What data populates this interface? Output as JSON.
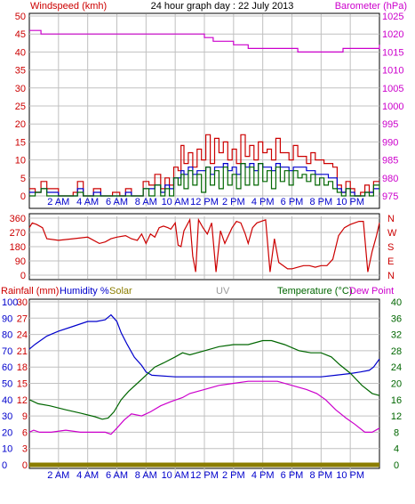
{
  "title": "24 hour graph day : 22 July 2013",
  "colors": {
    "red": "#cc0000",
    "blue": "#0000cc",
    "green": "#006600",
    "magenta": "#cc00cc",
    "olive": "#8b7d00",
    "grid": "#c0c0c0",
    "frame": "#000000",
    "uv": "#999999"
  },
  "time_ticks": [
    "2 AM",
    "4 AM",
    "6 AM",
    "8 AM",
    "10 AM",
    "12 PM",
    "2 PM",
    "4 PM",
    "6 PM",
    "8 PM",
    "10 PM"
  ],
  "chart_data": [
    {
      "type": "line",
      "panel": "wind-pressure",
      "left_axis_label": "Windspeed (kmh)",
      "right_axis_label": "Barometer (hPa)",
      "left_ticks": [
        "0",
        "5",
        "10",
        "15",
        "20",
        "25",
        "30",
        "35",
        "40",
        "45",
        "50"
      ],
      "right_ticks": [
        "975",
        "980",
        "985",
        "990",
        "995",
        "1000",
        "1005",
        "1010",
        "1015",
        "1020",
        "1025"
      ],
      "left_ylim": [
        0,
        50
      ],
      "right_ylim": [
        975,
        1025
      ],
      "x_range_hours": [
        0,
        24
      ],
      "grid": true,
      "series": [
        {
          "name": "Barometer",
          "axis": "right",
          "color": "magenta",
          "step": true,
          "x": [
            0,
            0.8,
            2.4,
            4.2,
            6.2,
            8,
            10,
            12,
            12.6,
            14,
            15,
            16,
            18,
            18.4,
            19.6,
            20.6,
            21.5,
            22.6,
            23.5,
            24
          ],
          "y": [
            1021,
            1020,
            1020,
            1020,
            1020,
            1020,
            1020,
            1019,
            1018,
            1017,
            1016,
            1016,
            1016,
            1015,
            1015,
            1015,
            1016,
            1016,
            1016,
            1017
          ]
        },
        {
          "name": "Wind gust",
          "axis": "left",
          "color": "red",
          "step": true,
          "x": [
            0,
            0.4,
            0.8,
            1.2,
            2,
            3,
            3.3,
            3.7,
            4.4,
            4.9,
            5.3,
            5.7,
            6.2,
            6.6,
            7,
            7.4,
            7.8,
            8.2,
            8.6,
            9,
            9.3,
            9.6,
            9.9,
            10.2,
            10.4,
            10.6,
            10.9,
            11.2,
            11.5,
            11.8,
            12.1,
            12.4,
            12.7,
            13,
            13.3,
            13.6,
            13.9,
            14.2,
            14.5,
            14.8,
            15.1,
            15.4,
            15.7,
            16,
            16.3,
            16.6,
            16.9,
            17.2,
            17.5,
            17.8,
            18.1,
            18.4,
            18.7,
            19,
            19.3,
            19.6,
            19.9,
            20.2,
            20.5,
            20.8,
            21.1,
            21.4,
            21.7,
            22,
            22.3,
            22.7,
            23,
            23.3,
            23.6,
            24
          ],
          "y": [
            2,
            1,
            4,
            2,
            0,
            1,
            4,
            0,
            2,
            0,
            0,
            1,
            0,
            2,
            0,
            0,
            4,
            3,
            6,
            2,
            5,
            3,
            8,
            7,
            14,
            9,
            12,
            8,
            13,
            10,
            17,
            9,
            16,
            12,
            15,
            10,
            13,
            9,
            17,
            11,
            14,
            10,
            15,
            12,
            13,
            10,
            16,
            12,
            12,
            10,
            14,
            11,
            11,
            9,
            12,
            10,
            10,
            9,
            9,
            8,
            3,
            1,
            4,
            2,
            0,
            1,
            3,
            1,
            4,
            4
          ]
        },
        {
          "name": "Wind average",
          "axis": "left",
          "color": "blue",
          "step": true,
          "x": [
            0,
            0.4,
            0.8,
            1.2,
            2,
            3,
            3.3,
            3.7,
            4.4,
            4.9,
            5.3,
            5.7,
            6.2,
            6.6,
            7,
            7.4,
            7.8,
            8.2,
            8.6,
            9,
            9.3,
            9.6,
            9.9,
            10.2,
            10.4,
            10.6,
            10.9,
            11.2,
            11.5,
            11.8,
            12.1,
            12.4,
            12.7,
            13,
            13.3,
            13.6,
            13.9,
            14.2,
            14.5,
            14.8,
            15.1,
            15.4,
            15.7,
            16,
            16.3,
            16.6,
            16.9,
            17.2,
            17.5,
            17.8,
            18.1,
            18.4,
            18.7,
            19,
            19.3,
            19.6,
            19.9,
            20.2,
            20.5,
            20.8,
            21.1,
            21.4,
            21.7,
            22,
            22.3,
            22.7,
            23,
            23.3,
            23.6,
            24
          ],
          "y": [
            1,
            1,
            2,
            1,
            0,
            0,
            2,
            0,
            1,
            0,
            0,
            0,
            0,
            1,
            0,
            0,
            2,
            2,
            3,
            1,
            3,
            2,
            5,
            5,
            7,
            6,
            8,
            6,
            7,
            7,
            8,
            6,
            8,
            8,
            9,
            7,
            8,
            6,
            9,
            8,
            9,
            7,
            9,
            8,
            8,
            7,
            9,
            8,
            8,
            7,
            8,
            8,
            8,
            7,
            7,
            6,
            6,
            6,
            5,
            5,
            2,
            1,
            2,
            1,
            0,
            0,
            1,
            1,
            2,
            2
          ]
        },
        {
          "name": "Wind speed",
          "axis": "left",
          "color": "green",
          "step": true,
          "x": [
            0,
            0.4,
            0.8,
            1.2,
            2,
            3,
            3.3,
            3.7,
            4.4,
            4.9,
            5.3,
            5.7,
            6.2,
            6.6,
            7,
            7.4,
            7.8,
            8.2,
            8.6,
            9,
            9.3,
            9.6,
            9.9,
            10.2,
            10.4,
            10.6,
            10.9,
            11.2,
            11.5,
            11.8,
            12.1,
            12.4,
            12.7,
            13,
            13.3,
            13.6,
            13.9,
            14.2,
            14.5,
            14.8,
            15.1,
            15.4,
            15.7,
            16,
            16.3,
            16.6,
            16.9,
            17.2,
            17.5,
            17.8,
            18.1,
            18.4,
            18.7,
            19,
            19.3,
            19.6,
            19.9,
            20.2,
            20.5,
            20.8,
            21.1,
            21.4,
            21.7,
            22,
            22.3,
            22.7,
            23,
            23.3,
            23.6,
            24
          ],
          "y": [
            0,
            1,
            2,
            0,
            0,
            0,
            1,
            0,
            0,
            0,
            0,
            0,
            0,
            0,
            0,
            0,
            2,
            0,
            3,
            0,
            2,
            0,
            5,
            3,
            6,
            2,
            7,
            3,
            6,
            1,
            8,
            3,
            7,
            2,
            8,
            3,
            6,
            2,
            9,
            3,
            8,
            3,
            9,
            4,
            7,
            2,
            8,
            4,
            7,
            3,
            7,
            5,
            6,
            4,
            6,
            3,
            5,
            3,
            4,
            2,
            1,
            0,
            2,
            0,
            0,
            0,
            1,
            0,
            3,
            1
          ]
        }
      ]
    },
    {
      "type": "line",
      "panel": "wind-direction",
      "left_ticks": [
        "0",
        "90",
        "180",
        "270",
        "360"
      ],
      "right_ticks": [
        "N",
        "E",
        "S",
        "W",
        "N"
      ],
      "left_ylim": [
        0,
        360
      ],
      "x_range_hours": [
        0,
        24
      ],
      "grid": true,
      "series": [
        {
          "name": "Wind direction",
          "axis": "left",
          "color": "red",
          "step": false,
          "x": [
            0,
            0.2,
            0.5,
            0.9,
            1.2,
            2,
            3,
            4,
            4.8,
            5.2,
            5.6,
            6,
            6.6,
            7,
            7.4,
            7.7,
            8,
            8.3,
            8.6,
            8.9,
            9.2,
            9.5,
            9.7,
            10,
            10.2,
            10.4,
            10.6,
            11,
            11.2,
            11.4,
            11.6,
            11.9,
            12.2,
            12.5,
            12.8,
            13.1,
            13.4,
            13.6,
            13.9,
            14.2,
            14.5,
            14.8,
            15,
            15.3,
            15.6,
            15.9,
            16.2,
            16.5,
            16.8,
            17.1,
            17.4,
            17.7,
            18,
            18.4,
            18.8,
            19.2,
            19.6,
            20,
            20.4,
            20.8,
            21.2,
            21.6,
            22,
            22.3,
            22.6,
            22.9,
            23.2,
            23.5,
            23.8,
            24
          ],
          "y": [
            300,
            330,
            320,
            300,
            230,
            220,
            230,
            240,
            200,
            210,
            230,
            240,
            250,
            230,
            220,
            260,
            200,
            260,
            240,
            300,
            310,
            300,
            290,
            330,
            190,
            180,
            280,
            350,
            120,
            20,
            350,
            300,
            260,
            330,
            20,
            280,
            200,
            240,
            300,
            340,
            330,
            260,
            200,
            300,
            330,
            340,
            350,
            20,
            230,
            80,
            60,
            40,
            40,
            50,
            60,
            60,
            50,
            60,
            60,
            100,
            250,
            300,
            320,
            330,
            340,
            340,
            20,
            150,
            250,
            330
          ]
        }
      ]
    },
    {
      "type": "line",
      "panel": "temperature-humidity",
      "rainfall_label": "Rainfall (mm)",
      "humidity_label": "Humidity %",
      "solar_label": "Solar",
      "uv_label": "UV",
      "temperature_label": "Temperature (°C)",
      "dewpoint_label": "Dew Point",
      "rain_ticks": [
        "0",
        "3",
        "6",
        "9",
        "12",
        "15",
        "18",
        "21",
        "24",
        "27",
        "30"
      ],
      "humidity_ticks": [
        "0",
        "10",
        "20",
        "30",
        "40",
        "50",
        "60",
        "70",
        "80",
        "90",
        "100"
      ],
      "temperature_ticks": [
        "0",
        "4",
        "8",
        "12",
        "16",
        "20",
        "24",
        "28",
        "32",
        "36",
        "40"
      ],
      "temperature_ylim": [
        0,
        40
      ],
      "humidity_ylim": [
        0,
        100
      ],
      "x_range_hours": [
        0,
        24
      ],
      "grid": true,
      "series": [
        {
          "name": "Humidity",
          "axis": "humidity",
          "color": "blue",
          "step": false,
          "x": [
            0,
            0.4,
            1.2,
            2,
            3,
            4,
            4.6,
            5.2,
            5.6,
            6,
            6.3,
            6.7,
            7.2,
            7.7,
            8,
            8.4,
            10,
            12,
            14,
            16,
            18,
            20,
            21,
            22,
            22.7,
            23.3,
            23.6,
            24
          ],
          "y": [
            71,
            74,
            79,
            82,
            85,
            88,
            88,
            89,
            92,
            88,
            81,
            74,
            66,
            61,
            57,
            55,
            54,
            54,
            54,
            54,
            54,
            54,
            55,
            56,
            57,
            58,
            60,
            65
          ]
        },
        {
          "name": "Temperature",
          "axis": "temperature",
          "color": "green",
          "step": false,
          "x": [
            0,
            0.6,
            1.4,
            2.5,
            3.5,
            4.5,
            5,
            5.4,
            5.8,
            6.3,
            6.8,
            7.4,
            8,
            8.6,
            9.2,
            10,
            10.5,
            11,
            12,
            13,
            14,
            15,
            16,
            16.6,
            17.5,
            18.5,
            19.3,
            20,
            20.7,
            21.3,
            22,
            22.8,
            23.5,
            24
          ],
          "y": [
            16,
            15,
            14.5,
            13.5,
            12.7,
            11.8,
            11.2,
            11.5,
            13,
            16,
            18,
            20,
            22,
            24,
            25,
            26.5,
            27.5,
            27,
            28,
            29,
            29.5,
            29.5,
            30.5,
            30.5,
            29.5,
            28,
            27.5,
            27.5,
            26.5,
            24.5,
            22.5,
            19.5,
            17.5,
            17
          ]
        },
        {
          "name": "Dew Point",
          "axis": "temperature",
          "color": "magenta",
          "step": false,
          "x": [
            0,
            0.3,
            0.7,
            1.5,
            2.5,
            3.5,
            4.5,
            5.2,
            5.6,
            6,
            6.5,
            7,
            7.7,
            8.3,
            9,
            9.7,
            10.5,
            11,
            12,
            13,
            14,
            15,
            16,
            17,
            18,
            19,
            19.7,
            20.3,
            21,
            21.7,
            22.3,
            23,
            23.5,
            24
          ],
          "y": [
            8,
            8.5,
            8,
            8,
            8.5,
            8,
            8,
            8,
            7.5,
            9,
            11,
            12.5,
            12,
            13,
            14.5,
            15.5,
            16.5,
            17.5,
            18.5,
            19.5,
            20,
            20.5,
            20.5,
            20.5,
            19.5,
            18.5,
            17.5,
            16,
            13.5,
            11.5,
            10,
            8,
            8,
            9
          ]
        },
        {
          "name": "Rainfall",
          "axis": "rain",
          "color": "olive",
          "step": false,
          "x": [
            0,
            24
          ],
          "y": [
            0,
            0
          ]
        }
      ]
    }
  ]
}
